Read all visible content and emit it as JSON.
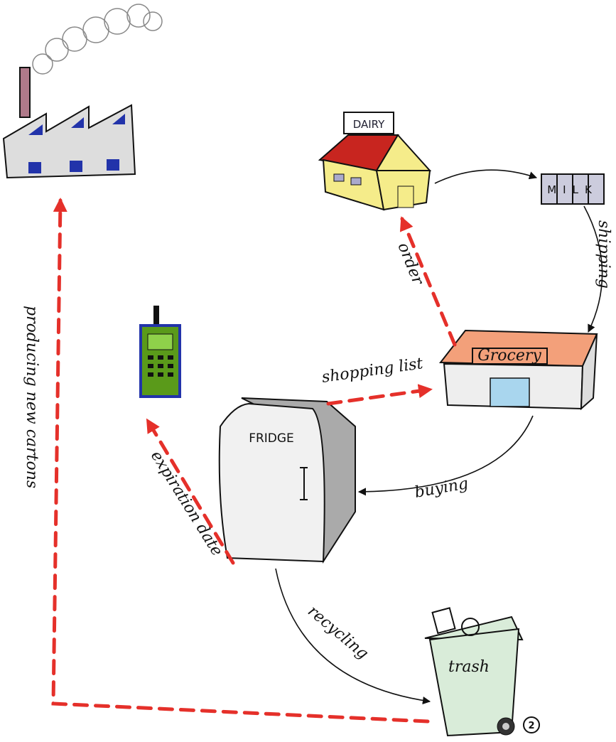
{
  "nodes": {
    "dairy": {
      "label": "DAIRY"
    },
    "milk": {
      "label": "MILK"
    },
    "grocery": {
      "label": "Grocery"
    },
    "fridge": {
      "label": "FRIDGE"
    },
    "trash": {
      "label": "trash",
      "badge": "2"
    }
  },
  "edges": [
    {
      "label": "shipping"
    },
    {
      "label": "order"
    },
    {
      "label": "shopping list"
    },
    {
      "label": "buying"
    },
    {
      "label": "expiration date"
    },
    {
      "label": "recycling"
    },
    {
      "label": "producing new cartons"
    }
  ]
}
